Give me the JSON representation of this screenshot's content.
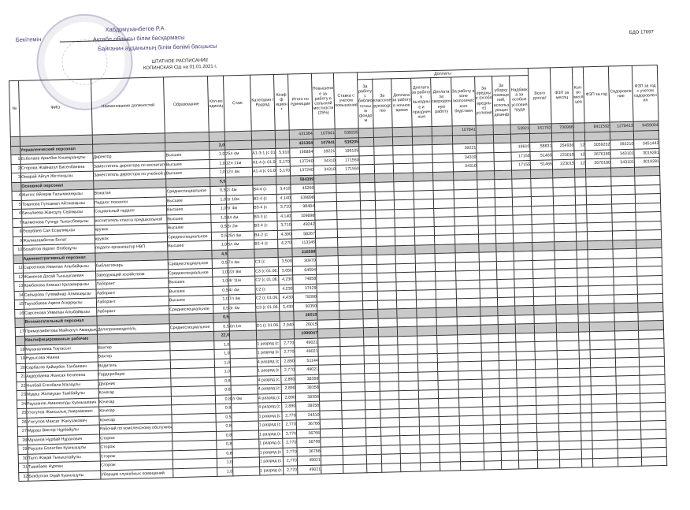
{
  "approval": {
    "label": "Бекітемін",
    "signer": "Хабдрмуханбетов Р.А",
    "line1": "Ақтөбе облысы білім басқармасы",
    "line2": "Байғанин ауданының білім бөлімі басшысы"
  },
  "title": {
    "line1": "ШТАТНОЕ РАСПИСАНИЕ",
    "line2": "КОПИНСКАЯ СШ на 01.01.2021 г."
  },
  "code": "БДО 17697",
  "headers": {
    "no": "№",
    "fio": "ФИО",
    "position": "Наименование должностей",
    "education": "Образование",
    "units": "Кол-во единиц",
    "stazh": "Стаж",
    "category": "Категория / Разряд",
    "coef": "Коэфф ициент",
    "total_units": "Итого по единицам",
    "rural": "Повышение за работу в сельской местности (25%)",
    "rate": "Ставка с учетом повышения",
    "doplaty": "Доплаты",
    "d1": "За работу с библиотечным фондом",
    "d2": "За классное руководство",
    "d3": "Доплата за работу в ночное время",
    "d4": "Доплата за работу в выходные и праздничные",
    "d5": "Доплата за сверхурочную работу",
    "d6": "За работу в зоне экологического бедствия",
    "d7": "За вредные (особо вредные) условия",
    "d8": "За уборку помещений, использующих дезинф",
    "d9": "Надбавка за особые условия труда",
    "all_dop": "Всего доплат",
    "fzp_month": "ФЗП за месяц",
    "months": "Кол-во месяцев",
    "fzp_year": "ФЗП за год",
    "health": "Оздоровление",
    "fzp_health": "ФЗП за год с учетом оздоровления"
  },
  "grand_total": {
    "units": "",
    "total_units": "431364",
    "rural": "107841",
    "rate": "539205",
    "d6": "107841",
    "d9": "53921",
    "all_dop": "161762",
    "fzp_month": "700966",
    "fzp_year": "8411592",
    "health": "1278413",
    "fzp_health": "9459004"
  },
  "sections": [
    {
      "name": "Управленческий персонал",
      "units": "3,0",
      "total": "431364",
      "rural": "107841",
      "rate": "539205",
      "rows": [
        {
          "no": "1",
          "fio": "Есболаев Аралбек Кошмұханұлы",
          "position": "Директор",
          "education": "Высшее",
          "units": "1,0",
          "stazh": "25л 4м",
          "category": "А1-3-1 (с 01.06.2019)",
          "coef": "5,910",
          "total": "156884",
          "rural": "39221",
          "rate": "196105",
          "d6": "39221",
          "d9": "19610",
          "all_dop": "58831",
          "fzp_month": "254936",
          "months": "12",
          "fzp_year": "3059232",
          "health": "392210",
          "fzp_health": "3451442"
        },
        {
          "no": "2",
          "fio": "Сторова Жайнагүл Бисенбаевна",
          "position": "Заместитель директора по воспитательной работе",
          "education": "Высшее",
          "units": "1,0",
          "stazh": "12л 11м",
          "category": "А1-4 (с 01.06.2019)",
          "coef": "5,170",
          "total": "137240",
          "rural": "34310",
          "rate": "171550",
          "d6": "34310",
          "d9": "17155",
          "all_dop": "51465",
          "fzp_month": "223015",
          "months": "12",
          "fzp_year": "2676180",
          "health": "343101",
          "fzp_health": "3019281"
        },
        {
          "no": "3",
          "fio": "Омарай Айгүл Жетпісқызы",
          "position": "Заместитель директора по учебной работе",
          "education": "Высшее",
          "units": "1,0",
          "stazh": "12л 4м",
          "category": "А1-4 (с 01.06.2019)",
          "coef": "5,170",
          "total": "137240",
          "rural": "34310",
          "rate": "171550",
          "d6": "34310",
          "d9": "17155",
          "all_dop": "51465",
          "fzp_month": "223015",
          "months": "12",
          "fzp_year": "2676180",
          "health": "343101",
          "fzp_health": "3019281"
        }
      ]
    },
    {
      "name": "Основной персонал",
      "units": "5,5",
      "total": "584399",
      "rows": [
        {
          "no": "4",
          "fio": "Жетпіс Әйгерім Ғалымжанқызы",
          "position": "Вожатая",
          "education": "Среднеспециальное",
          "units": "0,5",
          "stazh": "2г 4м",
          "category": "В4-4 (с",
          "coef": "3,410",
          "total": "45260"
        },
        {
          "no": "5",
          "fio": "Тоқанова Гүлсамал Айтжанқызы",
          "position": "Педагог психолог",
          "education": "Высшее",
          "units": "1,0",
          "stazh": "3г 10м",
          "category": "В2-4 (с",
          "coef": "4,140",
          "total": "109898"
        },
        {
          "no": "6",
          "fio": "Бисалиева Жансұлу Серікқызы",
          "position": "Социальный педагог",
          "education": "Высшее",
          "units": "1,0",
          "stazh": "5г 4м",
          "category": "В3-4 (с",
          "coef": "3,710",
          "total": "98484"
        },
        {
          "no": "7",
          "fio": "Калменова Гүлнұр Тынысбекқызы",
          "position": "воспитатель класса предшкольной",
          "education": "Высшее",
          "units": "1,0",
          "stazh": "8л 4м",
          "category": "В3-3 (с",
          "coef": "4,140",
          "total": "109898"
        },
        {
          "no": "8",
          "fio": "Әсербаев Сая Есқалиқызы",
          "position": "кружок",
          "education": "Высшее",
          "units": "0,5",
          "stazh": "3г 2м",
          "category": "В3-4 (с",
          "coef": "3,710",
          "total": "49242"
        },
        {
          "no": "9",
          "fio": "Жалмағамбетов Болат",
          "position": "кружок",
          "education": "Среднеспециальное",
          "units": "0,5",
          "stazh": "25л 4м",
          "category": "В4-2 (с",
          "coef": "4,390",
          "total": "58267"
        },
        {
          "no": "10",
          "fio": "Бозайтов Әділет Әлібекұлы",
          "position": "педагог-организатор НВП",
          "education": "Высшее",
          "units": "1,0",
          "stazh": "5л 4м",
          "category": "В2-4 (с",
          "coef": "4,270",
          "total": "113345"
        }
      ]
    },
    {
      "name": "Административный персонал",
      "units": "4,5",
      "total": "316599",
      "rows": [
        {
          "no": "11",
          "fio": "Сарсенова Уямилан Алыбайқызы",
          "position": "Библиотекарь",
          "education": "Среднеспециальное",
          "units": "0,5",
          "stazh": "7л 4м",
          "category": "С3 (с",
          "coef": "3,500",
          "total": "30970"
        },
        {
          "no": "12",
          "fio": "Жаменов Досай Тынышпаевич",
          "position": "Заведующий хозяйством",
          "education": "Среднеспециальное",
          "units": "1,0",
          "stazh": "22г 8м",
          "category": "С3 (с 01.06.2019)",
          "coef": "3,650",
          "total": "64594"
        },
        {
          "no": "13",
          "fio": "Комбекова Кәмшат Қаламарқызы",
          "position": "Лаборант",
          "education": "Высшее",
          "units": "1,0",
          "stazh": "4г 11м",
          "category": "С2 (с 01.06.2019)",
          "coef": "4,230",
          "total": "74858"
        },
        {
          "no": "14",
          "fio": "Сабырова Гүлмайнар Алмашқызы",
          "position": "Лаборант",
          "education": "Высшее",
          "units": "0,5",
          "stazh": "4г 4м",
          "category": "С2 (с",
          "coef": "4,230",
          "total": "37429"
        },
        {
          "no": "15",
          "fio": "Таухабаева Ақмоя Асқарқызы",
          "position": "Лаборант",
          "education": "Высшее",
          "units": "1,0",
          "stazh": "7л 4м",
          "category": "С2 (с 01.06.2019)",
          "coef": "4,430",
          "total": "78398"
        },
        {
          "no": "16",
          "fio": "Сарсенова Уямилан Алыбайқызы",
          "position": "Лаборант",
          "education": "Среднеспециальное",
          "units": "0,5",
          "stazh": "3г 4м",
          "category": "С3 (с 01.06.2019)",
          "coef": "3,430",
          "total": "30350"
        }
      ]
    },
    {
      "name": "Вспомогательный персонал",
      "units": "0,5",
      "total": "26015",
      "rows": [
        {
          "no": "17",
          "fio": "Примағамбетова Майнагүл Амандықызы",
          "position": "Делопроизводитель",
          "education": "Среднеспециальное",
          "units": "0,5",
          "stazh": "0л 1м",
          "category": "D1 (с 01.06.2019)",
          "coef": "2,940",
          "total": "26015"
        }
      ]
    },
    {
      "name": "Квалифицированные рабочие",
      "units": "22,0",
      "total": "1090047",
      "rows": [
        {
          "no": "18",
          "fio": "Мұханалиева Тоқтасын",
          "position": "Вахтер",
          "education": "",
          "units": "1,0",
          "stazh": "",
          "category": "1 разряд (с",
          "coef": "2,770",
          "total": "49021"
        },
        {
          "no": "19",
          "fio": "Нұрысова Жанна",
          "position": "Вахтер",
          "education": "",
          "units": "1,0",
          "stazh": "",
          "category": "1 разряд (с",
          "coef": "2,770",
          "total": "49021"
        },
        {
          "no": "20",
          "fio": "Сарбасов Қайырбек Танбаевич",
          "position": "Водитель",
          "education": "",
          "units": "1,0",
          "stazh": "",
          "category": "4 разряд (с",
          "coef": "2,890",
          "total": "51144"
        },
        {
          "no": "21",
          "fio": "Ақдербаева Жансая Кенеевна",
          "position": "Гардеробщик",
          "education": "",
          "units": "1,0",
          "stazh": "",
          "category": "1 разряд (с",
          "coef": "2,770",
          "total": "49021"
        },
        {
          "no": "22",
          "fio": "Нәлбай Есенбала Малаұлы",
          "position": "Дворник",
          "education": "",
          "units": "0,8",
          "stazh": "",
          "category": "4 разряд (с",
          "coef": "2,890",
          "total": "38358"
        },
        {
          "no": "23",
          "fio": "Мұқаш Жолмұхан Тажібайұлы",
          "position": "Кочегар",
          "education": "",
          "units": "0,8",
          "stazh": "",
          "category": "4 разряд (с",
          "coef": "2,890",
          "total": "38358"
        },
        {
          "no": "24",
          "fio": "Раушанов Аманжолды Куанышевич",
          "position": "Кочегар",
          "education": "",
          "units": "0,8",
          "stazh": "2г 0м",
          "category": "4 разряд (с",
          "coef": "2,890",
          "total": "38358"
        },
        {
          "no": "25",
          "fio": "Утегулов Жансылық Умирзакович",
          "position": "Кочегар",
          "education": "",
          "units": "0,8",
          "stazh": "",
          "category": "4 разряд (с",
          "coef": "2,890",
          "total": "38358"
        },
        {
          "no": "26",
          "fio": "Утегулов Максат Жанузакович",
          "position": "Кочегар",
          "education": "",
          "units": "0,5",
          "stazh": "",
          "category": "1 разряд (с",
          "coef": "2,770",
          "total": "24510"
        },
        {
          "no": "27",
          "fio": "Мұраш Виктор Нұрбайұлы",
          "position": "Рабочий по комплексному обслуживанию",
          "education": "",
          "units": "0,8",
          "stazh": "",
          "category": "1 разряд (с",
          "coef": "2,770",
          "total": "36766"
        },
        {
          "no": "28",
          "fio": "Мұханов Нұрбай Нұранович",
          "position": "Сторож",
          "education": "",
          "units": "0,8",
          "stazh": "",
          "category": "1 разряд (с",
          "coef": "2,770",
          "total": "36766"
        },
        {
          "no": "29",
          "fio": "Раушан Болатбек Куанышұлы",
          "position": "Сторож",
          "education": "",
          "units": "0,8",
          "stazh": "",
          "category": "1 разряд (с",
          "coef": "2,770",
          "total": "36766"
        },
        {
          "no": "30",
          "fio": "Талп Жақай Тынышпайұлы",
          "position": "Сторож",
          "education": "",
          "units": "0,8",
          "stazh": "",
          "category": "1 разряд (с",
          "coef": "2,770",
          "total": "36766"
        },
        {
          "no": "31",
          "fio": "Тажибаев Нұрлан",
          "position": "Сторож",
          "education": "",
          "units": "1,0",
          "stazh": "",
          "category": "1 разряд (с",
          "coef": "2,770",
          "total": "49021"
        },
        {
          "no": "32",
          "fio": "Бекбулган Оңай Куанышұлы",
          "position": "Уборщик служебных помещений",
          "education": "",
          "units": "1,0",
          "stazh": "",
          "category": "1 разряд (с",
          "coef": "2,770",
          "total": "49021"
        }
      ]
    }
  ]
}
